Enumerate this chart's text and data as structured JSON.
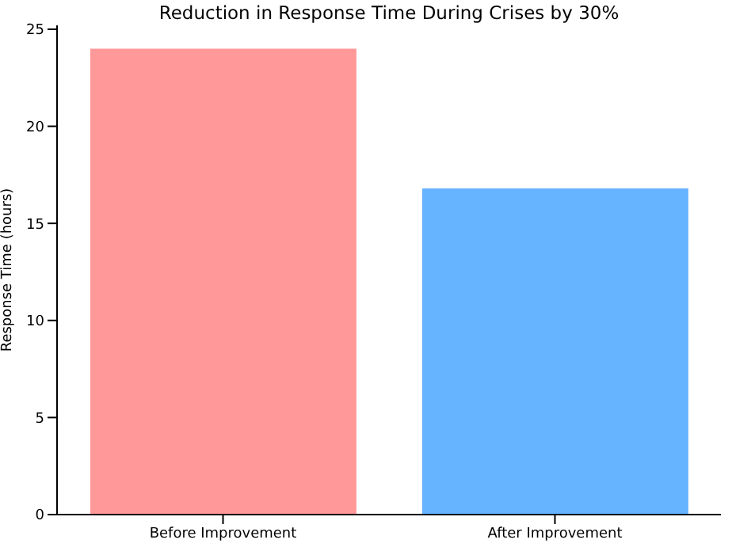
{
  "chart_data": {
    "type": "bar",
    "title": "Reduction in Response Time During Crises by 30%",
    "categories": [
      "Before Improvement",
      "After Improvement"
    ],
    "values": [
      24,
      16.8
    ],
    "colors": [
      "#ff9999",
      "#66b3ff"
    ],
    "ylabel": "Response Time (hours)",
    "ylim": [
      0,
      25.2
    ],
    "yticks": [
      0,
      5,
      10,
      15,
      20,
      25
    ]
  }
}
